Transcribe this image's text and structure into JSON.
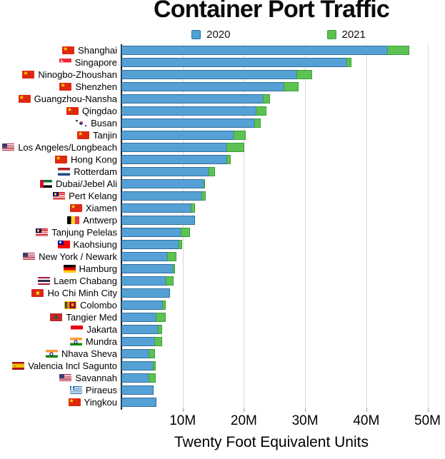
{
  "page": {
    "window_title": "Container Port Traffic"
  },
  "chart_data": {
    "type": "bar",
    "orientation": "horizontal",
    "title": "Container Port Traffic",
    "xlabel": "Twenty Foot Equivalent Units",
    "unit": "TEU, millions",
    "x_ticks": [
      "10M",
      "20M",
      "30M",
      "40M",
      "50M"
    ],
    "x_tick_values_millions": [
      10,
      20,
      30,
      40,
      50
    ],
    "xlim_millions": [
      0,
      51.3
    ],
    "grid": "vertical-only",
    "legend": {
      "position": "top-center",
      "entries": [
        {
          "label": "2020",
          "color": "#4da2d8"
        },
        {
          "label": "2021",
          "color": "#5dc152"
        }
      ]
    },
    "render_note": "2021 bar drawn behind 2020 bar; green visible only where 2021 exceeds 2020",
    "rows": [
      {
        "port": "Shanghai",
        "flag": "cn",
        "y2020": 43.5,
        "y2021": 47.0
      },
      {
        "port": "Singapore",
        "flag": "sg",
        "y2020": 36.9,
        "y2021": 37.6
      },
      {
        "port": "Ninogbo-Zhoushan",
        "flag": "cn",
        "y2020": 28.7,
        "y2021": 31.1
      },
      {
        "port": "Shenzhen",
        "flag": "cn",
        "y2020": 26.6,
        "y2021": 28.9
      },
      {
        "port": "Guangzhou-Nansha",
        "flag": "cn",
        "y2020": 23.2,
        "y2021": 24.3
      },
      {
        "port": "Qingdao",
        "flag": "cn",
        "y2020": 22.0,
        "y2021": 23.7
      },
      {
        "port": "Busan",
        "flag": "kr",
        "y2020": 21.8,
        "y2021": 22.7
      },
      {
        "port": "Tanjin",
        "flag": "cn",
        "y2020": 18.4,
        "y2021": 20.3
      },
      {
        "port": "Los Angeles/Longbeach",
        "flag": "us",
        "y2020": 17.3,
        "y2021": 20.1
      },
      {
        "port": "Hong Kong",
        "flag": "cn",
        "y2020": 17.3,
        "y2021": 17.8
      },
      {
        "port": "Rotterdam",
        "flag": "nl",
        "y2020": 14.3,
        "y2021": 15.3
      },
      {
        "port": "Dubai/Jebel Ali",
        "flag": "ae",
        "y2020": 13.5,
        "y2021": 13.7
      },
      {
        "port": "Pert Kelang",
        "flag": "my",
        "y2020": 13.2,
        "y2021": 13.8
      },
      {
        "port": "Xiamen",
        "flag": "cn",
        "y2020": 11.4,
        "y2021": 12.0
      },
      {
        "port": "Antwerp",
        "flag": "be",
        "y2020": 12.0,
        "y2021": null
      },
      {
        "port": "Tanjung Pelelas",
        "flag": "my",
        "y2020": 9.8,
        "y2021": 11.2
      },
      {
        "port": "Kaohsiung",
        "flag": "tw",
        "y2020": 9.5,
        "y2021": 9.9
      },
      {
        "port": "New York / Newark",
        "flag": "us",
        "y2020": 7.6,
        "y2021": 9.0
      },
      {
        "port": "Hamburg",
        "flag": "de",
        "y2020": 8.5,
        "y2021": 8.7
      },
      {
        "port": "Laem Chabang",
        "flag": "th",
        "y2020": 7.4,
        "y2021": 8.5
      },
      {
        "port": "Ho Chi Minh City",
        "flag": "vn",
        "y2020": 7.9,
        "y2021": null
      },
      {
        "port": "Colombo",
        "flag": "lk",
        "y2020": 6.8,
        "y2021": 7.2
      },
      {
        "port": "Tangier Med",
        "flag": "ma",
        "y2020": 5.7,
        "y2021": 7.2
      },
      {
        "port": "Jakarta",
        "flag": "id",
        "y2020": 6.1,
        "y2021": 6.6
      },
      {
        "port": "Mundra",
        "flag": "in",
        "y2020": 5.5,
        "y2021": 6.6
      },
      {
        "port": "Nhava Sheva",
        "flag": "in",
        "y2020": 4.5,
        "y2021": 5.5
      },
      {
        "port": "Valencia Incl Sagunto",
        "flag": "es",
        "y2020": 5.3,
        "y2021": 5.6
      },
      {
        "port": "Savannah",
        "flag": "us",
        "y2020": 4.6,
        "y2021": 5.6
      },
      {
        "port": "Piraeus",
        "flag": "gr",
        "y2020": 5.3,
        "y2021": null
      },
      {
        "port": "Yingkou",
        "flag": "cn",
        "y2020": 5.7,
        "y2021": null
      }
    ]
  },
  "colors": {
    "bar_2020_fill": "#55a1d5",
    "bar_2020_border": "#2e6f9f",
    "bar_2021_fill": "#5ec252",
    "bar_2021_border": "#3a9e3f",
    "gridline": "#d9d9d9",
    "axis_spine": "#15222e",
    "text": "#000000"
  }
}
